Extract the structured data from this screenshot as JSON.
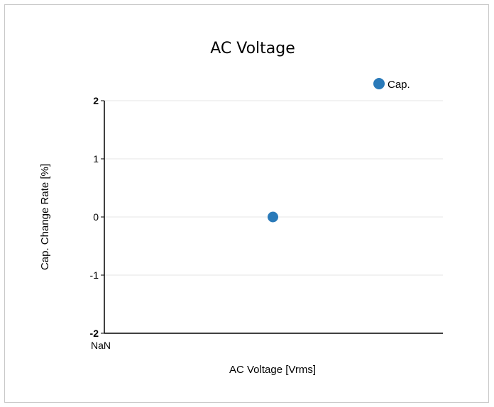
{
  "chart_data": {
    "type": "scatter",
    "title": "AC Voltage",
    "xlabel": "AC Voltage [Vrms]",
    "ylabel": "Cap. Change Rate [%]",
    "ylim": [
      -2,
      2
    ],
    "y_ticks": [
      "2",
      "1",
      "0",
      "-1",
      "-2"
    ],
    "x_ticks": [
      "NaN"
    ],
    "grid": true,
    "legend_position": "top-right",
    "series": [
      {
        "name": "Cap.",
        "color": "#2a7ab9",
        "points": [
          {
            "x": null,
            "y": 0
          }
        ]
      }
    ]
  }
}
